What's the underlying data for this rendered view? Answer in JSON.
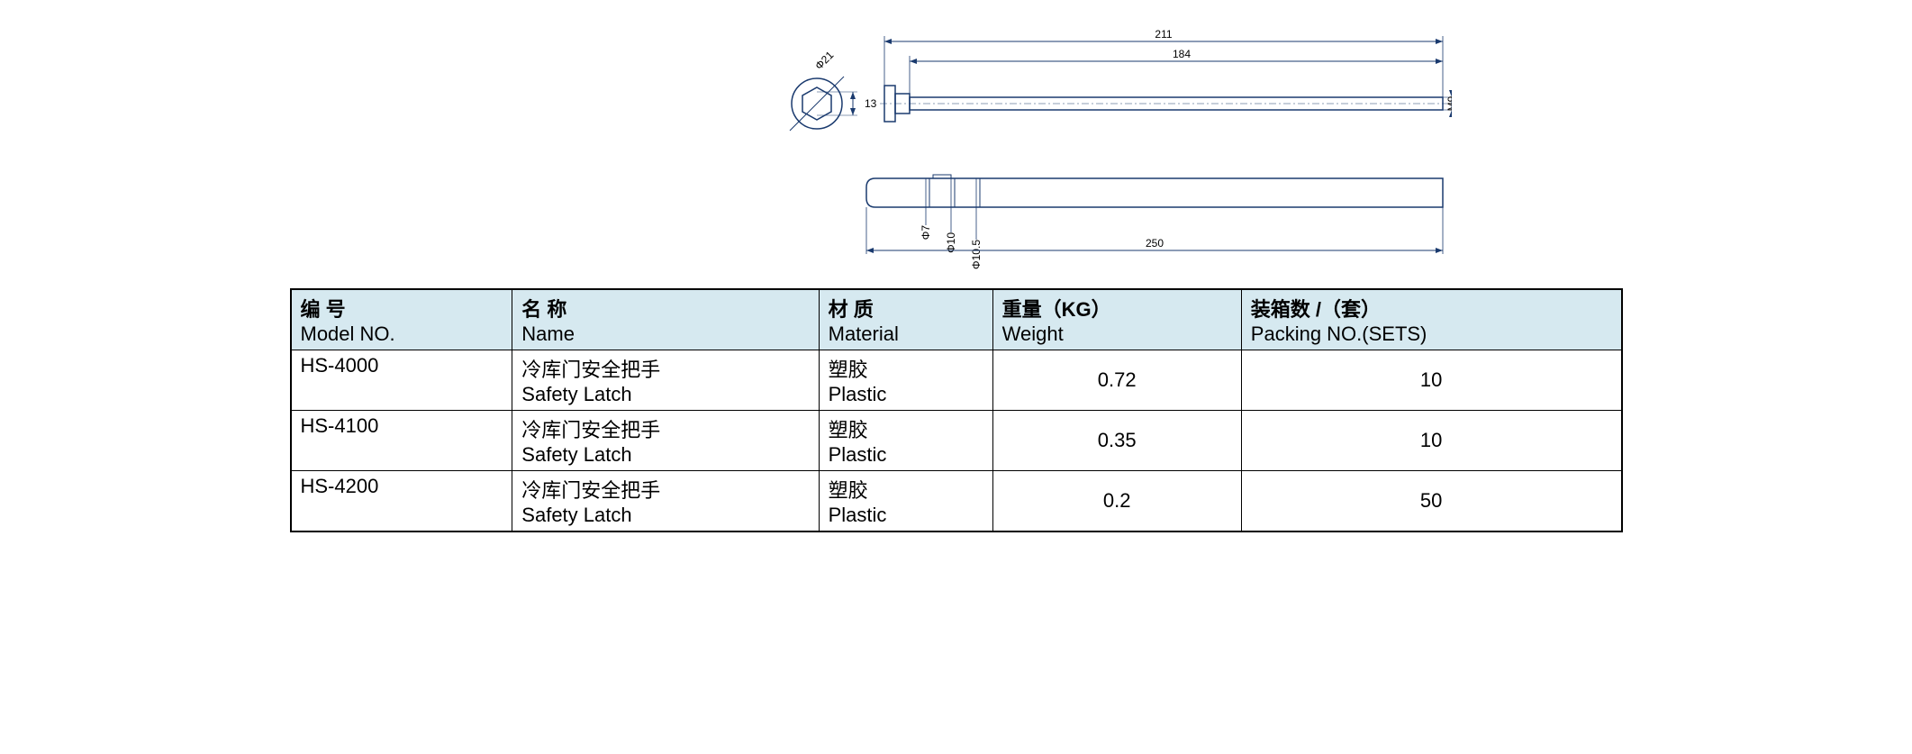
{
  "drawing": {
    "stroke": "#1a3a6e",
    "stroke_width": 1.2,
    "annotation_color": "#000000",
    "annotation_fontsize": 12,
    "top_view": {
      "dim_211": "211",
      "dim_184": "184",
      "dim_13": "13",
      "dim_phi21": "Φ21",
      "dim_M9": "M9"
    },
    "side_view": {
      "dim_250": "250",
      "dim_phi7": "Φ7",
      "dim_phi10": "Φ10",
      "dim_phi10_5": "Φ10.5"
    }
  },
  "table": {
    "header_bg": "#d6e9f0",
    "border_color": "#000000",
    "columns": [
      {
        "cn": "编 号",
        "en": "Model NO."
      },
      {
        "cn": "名 称",
        "en": "Name"
      },
      {
        "cn": "材 质",
        "en": "Material"
      },
      {
        "cn": "重量（KG）",
        "en": "Weight"
      },
      {
        "cn": "装箱数 /（套）",
        "en": "Packing NO.(SETS)"
      }
    ],
    "rows": [
      {
        "model": "HS-4000",
        "name_cn": "冷库门安全把手",
        "name_en": "Safety Latch",
        "material_cn": "塑胶",
        "material_en": "Plastic",
        "weight": "0.72",
        "packing": "10"
      },
      {
        "model": "HS-4100",
        "name_cn": "冷库门安全把手",
        "name_en": "Safety Latch",
        "material_cn": "塑胶",
        "material_en": "Plastic",
        "weight": "0.35",
        "packing": "10"
      },
      {
        "model": "HS-4200",
        "name_cn": "冷库门安全把手",
        "name_en": "Safety Latch",
        "material_cn": "塑胶",
        "material_en": "Plastic",
        "weight": "0.2",
        "packing": "50"
      }
    ]
  }
}
